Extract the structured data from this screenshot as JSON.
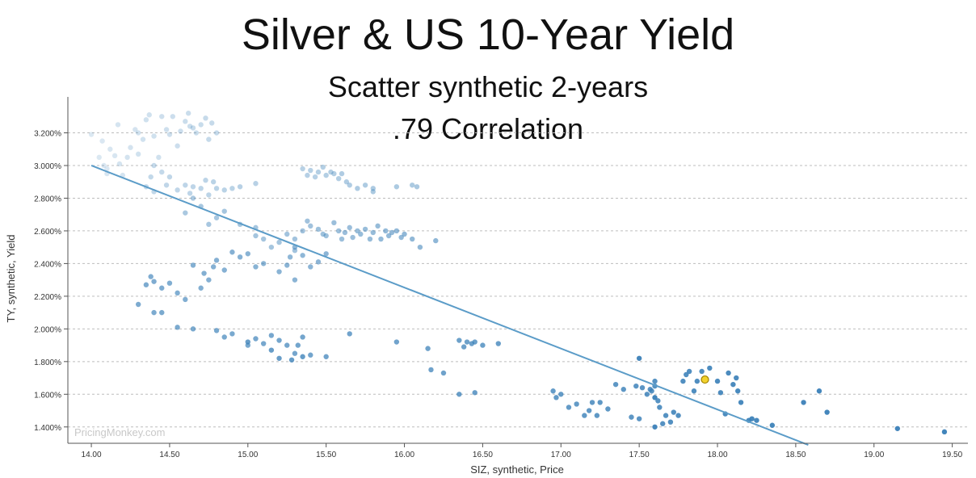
{
  "chart_data": {
    "type": "scatter",
    "title": "Silver & US 10-Year Yield",
    "subtitle": "Scatter synthetic 2-years",
    "subtitle2": ".79 Correlation",
    "xlabel": "SIZ, synthetic, Price",
    "ylabel": "TY, synthetic, Yield",
    "xlim": [
      13.85,
      19.6
    ],
    "ylim": [
      1.3,
      3.42
    ],
    "x_ticks": [
      14.0,
      14.5,
      15.0,
      15.5,
      16.0,
      16.5,
      17.0,
      17.5,
      18.0,
      18.5,
      19.0,
      19.5
    ],
    "x_tick_labels": [
      "14.00",
      "14.50",
      "15.00",
      "15.50",
      "16.00",
      "16.50",
      "17.00",
      "17.50",
      "18.00",
      "18.50",
      "19.00",
      "19.50"
    ],
    "y_ticks": [
      1.4,
      1.6,
      1.8,
      2.0,
      2.2,
      2.4,
      2.6,
      2.8,
      3.0,
      3.2
    ],
    "y_tick_labels": [
      "1.400%",
      "1.600%",
      "1.800%",
      "2.000%",
      "2.200%",
      "2.400%",
      "2.600%",
      "2.800%",
      "3.000%",
      "3.200%"
    ],
    "grid": "horizontal dashed",
    "trendline": {
      "x": [
        14.0,
        18.58
      ],
      "y": [
        3.0,
        1.29
      ]
    },
    "highlight_point": {
      "x": 17.92,
      "y": 1.69
    },
    "colors": {
      "point": "#3a80b8",
      "trendline": "#5b9cc8",
      "highlight_fill": "#f2d22e",
      "highlight_stroke": "#a08000",
      "grid": "#bdbdbd",
      "axis": "#555555"
    },
    "points": [
      [
        14.0,
        3.19
      ],
      [
        14.05,
        3.05
      ],
      [
        14.07,
        3.15
      ],
      [
        14.08,
        3.0
      ],
      [
        14.1,
        2.98
      ],
      [
        14.1,
        2.95
      ],
      [
        14.12,
        3.1
      ],
      [
        14.15,
        3.06
      ],
      [
        14.17,
        3.25
      ],
      [
        14.18,
        3.01
      ],
      [
        14.2,
        2.94
      ],
      [
        14.23,
        3.05
      ],
      [
        14.25,
        3.11
      ],
      [
        14.28,
        3.22
      ],
      [
        14.3,
        3.2
      ],
      [
        14.3,
        3.07
      ],
      [
        14.33,
        3.16
      ],
      [
        14.35,
        3.28
      ],
      [
        14.37,
        3.31
      ],
      [
        14.4,
        3.18
      ],
      [
        14.43,
        3.05
      ],
      [
        14.45,
        3.3
      ],
      [
        14.48,
        3.22
      ],
      [
        14.5,
        3.19
      ],
      [
        14.52,
        3.3
      ],
      [
        14.55,
        3.12
      ],
      [
        14.57,
        3.21
      ],
      [
        14.6,
        3.27
      ],
      [
        14.62,
        3.32
      ],
      [
        14.63,
        3.24
      ],
      [
        14.65,
        3.23
      ],
      [
        14.67,
        3.2
      ],
      [
        14.7,
        3.25
      ],
      [
        14.73,
        3.29
      ],
      [
        14.75,
        3.16
      ],
      [
        14.77,
        3.26
      ],
      [
        14.8,
        3.2
      ],
      [
        14.4,
        3.0
      ],
      [
        14.45,
        2.96
      ],
      [
        14.35,
        2.87
      ],
      [
        14.38,
        2.93
      ],
      [
        14.4,
        2.84
      ],
      [
        14.48,
        2.88
      ],
      [
        14.5,
        2.93
      ],
      [
        14.55,
        2.85
      ],
      [
        14.6,
        2.88
      ],
      [
        14.63,
        2.83
      ],
      [
        14.65,
        2.87
      ],
      [
        14.7,
        2.86
      ],
      [
        14.73,
        2.91
      ],
      [
        14.75,
        2.82
      ],
      [
        14.78,
        2.9
      ],
      [
        14.8,
        2.86
      ],
      [
        14.85,
        2.85
      ],
      [
        14.9,
        2.86
      ],
      [
        14.95,
        2.87
      ],
      [
        15.05,
        2.89
      ],
      [
        15.35,
        2.98
      ],
      [
        15.38,
        2.94
      ],
      [
        15.4,
        2.97
      ],
      [
        15.43,
        2.93
      ],
      [
        15.45,
        2.96
      ],
      [
        15.48,
        2.99
      ],
      [
        15.5,
        2.94
      ],
      [
        15.53,
        2.96
      ],
      [
        15.55,
        2.95
      ],
      [
        15.58,
        2.92
      ],
      [
        15.6,
        2.95
      ],
      [
        15.63,
        2.9
      ],
      [
        15.65,
        2.88
      ],
      [
        15.7,
        2.86
      ],
      [
        15.75,
        2.88
      ],
      [
        15.8,
        2.86
      ],
      [
        15.8,
        2.84
      ],
      [
        15.95,
        2.87
      ],
      [
        16.05,
        2.88
      ],
      [
        16.08,
        2.87
      ],
      [
        14.6,
        2.71
      ],
      [
        14.65,
        2.8
      ],
      [
        14.7,
        2.75
      ],
      [
        14.75,
        2.64
      ],
      [
        14.8,
        2.68
      ],
      [
        14.85,
        2.72
      ],
      [
        14.95,
        2.64
      ],
      [
        15.05,
        2.62
      ],
      [
        15.05,
        2.57
      ],
      [
        15.1,
        2.55
      ],
      [
        15.15,
        2.5
      ],
      [
        15.2,
        2.53
      ],
      [
        15.25,
        2.58
      ],
      [
        15.3,
        2.55
      ],
      [
        15.3,
        2.48
      ],
      [
        15.35,
        2.6
      ],
      [
        15.38,
        2.66
      ],
      [
        15.4,
        2.63
      ],
      [
        15.45,
        2.61
      ],
      [
        15.48,
        2.58
      ],
      [
        15.5,
        2.57
      ],
      [
        15.55,
        2.65
      ],
      [
        15.58,
        2.6
      ],
      [
        15.6,
        2.55
      ],
      [
        15.62,
        2.59
      ],
      [
        15.65,
        2.62
      ],
      [
        15.67,
        2.56
      ],
      [
        15.7,
        2.6
      ],
      [
        15.72,
        2.58
      ],
      [
        15.75,
        2.61
      ],
      [
        15.78,
        2.55
      ],
      [
        15.8,
        2.59
      ],
      [
        15.83,
        2.63
      ],
      [
        15.85,
        2.55
      ],
      [
        15.88,
        2.6
      ],
      [
        15.9,
        2.57
      ],
      [
        15.92,
        2.59
      ],
      [
        15.95,
        2.6
      ],
      [
        15.98,
        2.56
      ],
      [
        16.0,
        2.58
      ],
      [
        16.05,
        2.55
      ],
      [
        16.1,
        2.5
      ],
      [
        16.2,
        2.54
      ],
      [
        15.3,
        2.5
      ],
      [
        15.27,
        2.44
      ],
      [
        15.35,
        2.45
      ],
      [
        15.4,
        2.38
      ],
      [
        15.45,
        2.41
      ],
      [
        15.5,
        2.46
      ],
      [
        15.3,
        2.3
      ],
      [
        15.25,
        2.39
      ],
      [
        15.2,
        2.35
      ],
      [
        15.1,
        2.4
      ],
      [
        15.05,
        2.38
      ],
      [
        15.0,
        2.46
      ],
      [
        14.95,
        2.44
      ],
      [
        14.9,
        2.47
      ],
      [
        14.85,
        2.36
      ],
      [
        14.8,
        2.42
      ],
      [
        14.78,
        2.38
      ],
      [
        14.75,
        2.3
      ],
      [
        14.72,
        2.34
      ],
      [
        14.7,
        2.25
      ],
      [
        14.65,
        2.39
      ],
      [
        14.6,
        2.18
      ],
      [
        14.55,
        2.22
      ],
      [
        14.5,
        2.28
      ],
      [
        14.45,
        2.25
      ],
      [
        14.4,
        2.29
      ],
      [
        14.38,
        2.32
      ],
      [
        14.35,
        2.27
      ],
      [
        14.3,
        2.15
      ],
      [
        14.4,
        2.1
      ],
      [
        14.45,
        2.1
      ],
      [
        14.55,
        2.01
      ],
      [
        14.65,
        2.0
      ],
      [
        14.8,
        1.99
      ],
      [
        14.85,
        1.95
      ],
      [
        14.9,
        1.97
      ],
      [
        15.0,
        1.9
      ],
      [
        15.05,
        1.94
      ],
      [
        15.1,
        1.91
      ],
      [
        15.15,
        1.96
      ],
      [
        15.2,
        1.93
      ],
      [
        15.25,
        1.9
      ],
      [
        15.3,
        1.85
      ],
      [
        15.32,
        1.9
      ],
      [
        15.35,
        1.95
      ],
      [
        15.4,
        1.84
      ],
      [
        15.5,
        1.83
      ],
      [
        15.65,
        1.97
      ],
      [
        15.95,
        1.92
      ],
      [
        16.15,
        1.88
      ],
      [
        16.17,
        1.75
      ],
      [
        16.25,
        1.73
      ],
      [
        16.35,
        1.93
      ],
      [
        16.38,
        1.89
      ],
      [
        16.4,
        1.92
      ],
      [
        16.43,
        1.91
      ],
      [
        16.45,
        1.92
      ],
      [
        16.5,
        1.9
      ],
      [
        16.6,
        1.91
      ],
      [
        16.35,
        1.6
      ],
      [
        16.45,
        1.61
      ],
      [
        15.0,
        1.92
      ],
      [
        15.15,
        1.87
      ],
      [
        15.2,
        1.82
      ],
      [
        15.28,
        1.81
      ],
      [
        15.35,
        1.83
      ],
      [
        16.95,
        1.62
      ],
      [
        16.97,
        1.58
      ],
      [
        17.0,
        1.6
      ],
      [
        17.05,
        1.52
      ],
      [
        17.1,
        1.54
      ],
      [
        17.15,
        1.47
      ],
      [
        17.18,
        1.5
      ],
      [
        17.2,
        1.55
      ],
      [
        17.23,
        1.47
      ],
      [
        17.25,
        1.55
      ],
      [
        17.3,
        1.51
      ],
      [
        17.35,
        1.66
      ],
      [
        17.4,
        1.63
      ],
      [
        17.45,
        1.46
      ],
      [
        17.48,
        1.65
      ],
      [
        17.5,
        1.45
      ],
      [
        17.52,
        1.64
      ],
      [
        17.55,
        1.6
      ],
      [
        17.57,
        1.63
      ],
      [
        17.58,
        1.62
      ],
      [
        17.6,
        1.65
      ],
      [
        17.6,
        1.68
      ],
      [
        17.62,
        1.56
      ],
      [
        17.63,
        1.52
      ],
      [
        17.65,
        1.42
      ],
      [
        17.67,
        1.47
      ],
      [
        17.7,
        1.43
      ],
      [
        17.72,
        1.49
      ],
      [
        17.75,
        1.47
      ],
      [
        17.78,
        1.68
      ],
      [
        17.8,
        1.72
      ],
      [
        17.82,
        1.74
      ],
      [
        17.85,
        1.62
      ],
      [
        17.87,
        1.68
      ],
      [
        17.9,
        1.74
      ],
      [
        17.95,
        1.76
      ],
      [
        18.0,
        1.68
      ],
      [
        18.02,
        1.61
      ],
      [
        18.05,
        1.48
      ],
      [
        18.07,
        1.73
      ],
      [
        18.1,
        1.66
      ],
      [
        18.12,
        1.7
      ],
      [
        18.13,
        1.62
      ],
      [
        18.15,
        1.55
      ],
      [
        18.2,
        1.44
      ],
      [
        18.22,
        1.45
      ],
      [
        18.25,
        1.44
      ],
      [
        18.35,
        1.41
      ],
      [
        17.5,
        1.82
      ],
      [
        17.6,
        1.4
      ],
      [
        18.55,
        1.55
      ],
      [
        18.65,
        1.62
      ],
      [
        18.7,
        1.49
      ],
      [
        19.15,
        1.39
      ],
      [
        19.45,
        1.37
      ],
      [
        17.6,
        1.58
      ]
    ]
  },
  "watermark": "PricingMonkey.com"
}
